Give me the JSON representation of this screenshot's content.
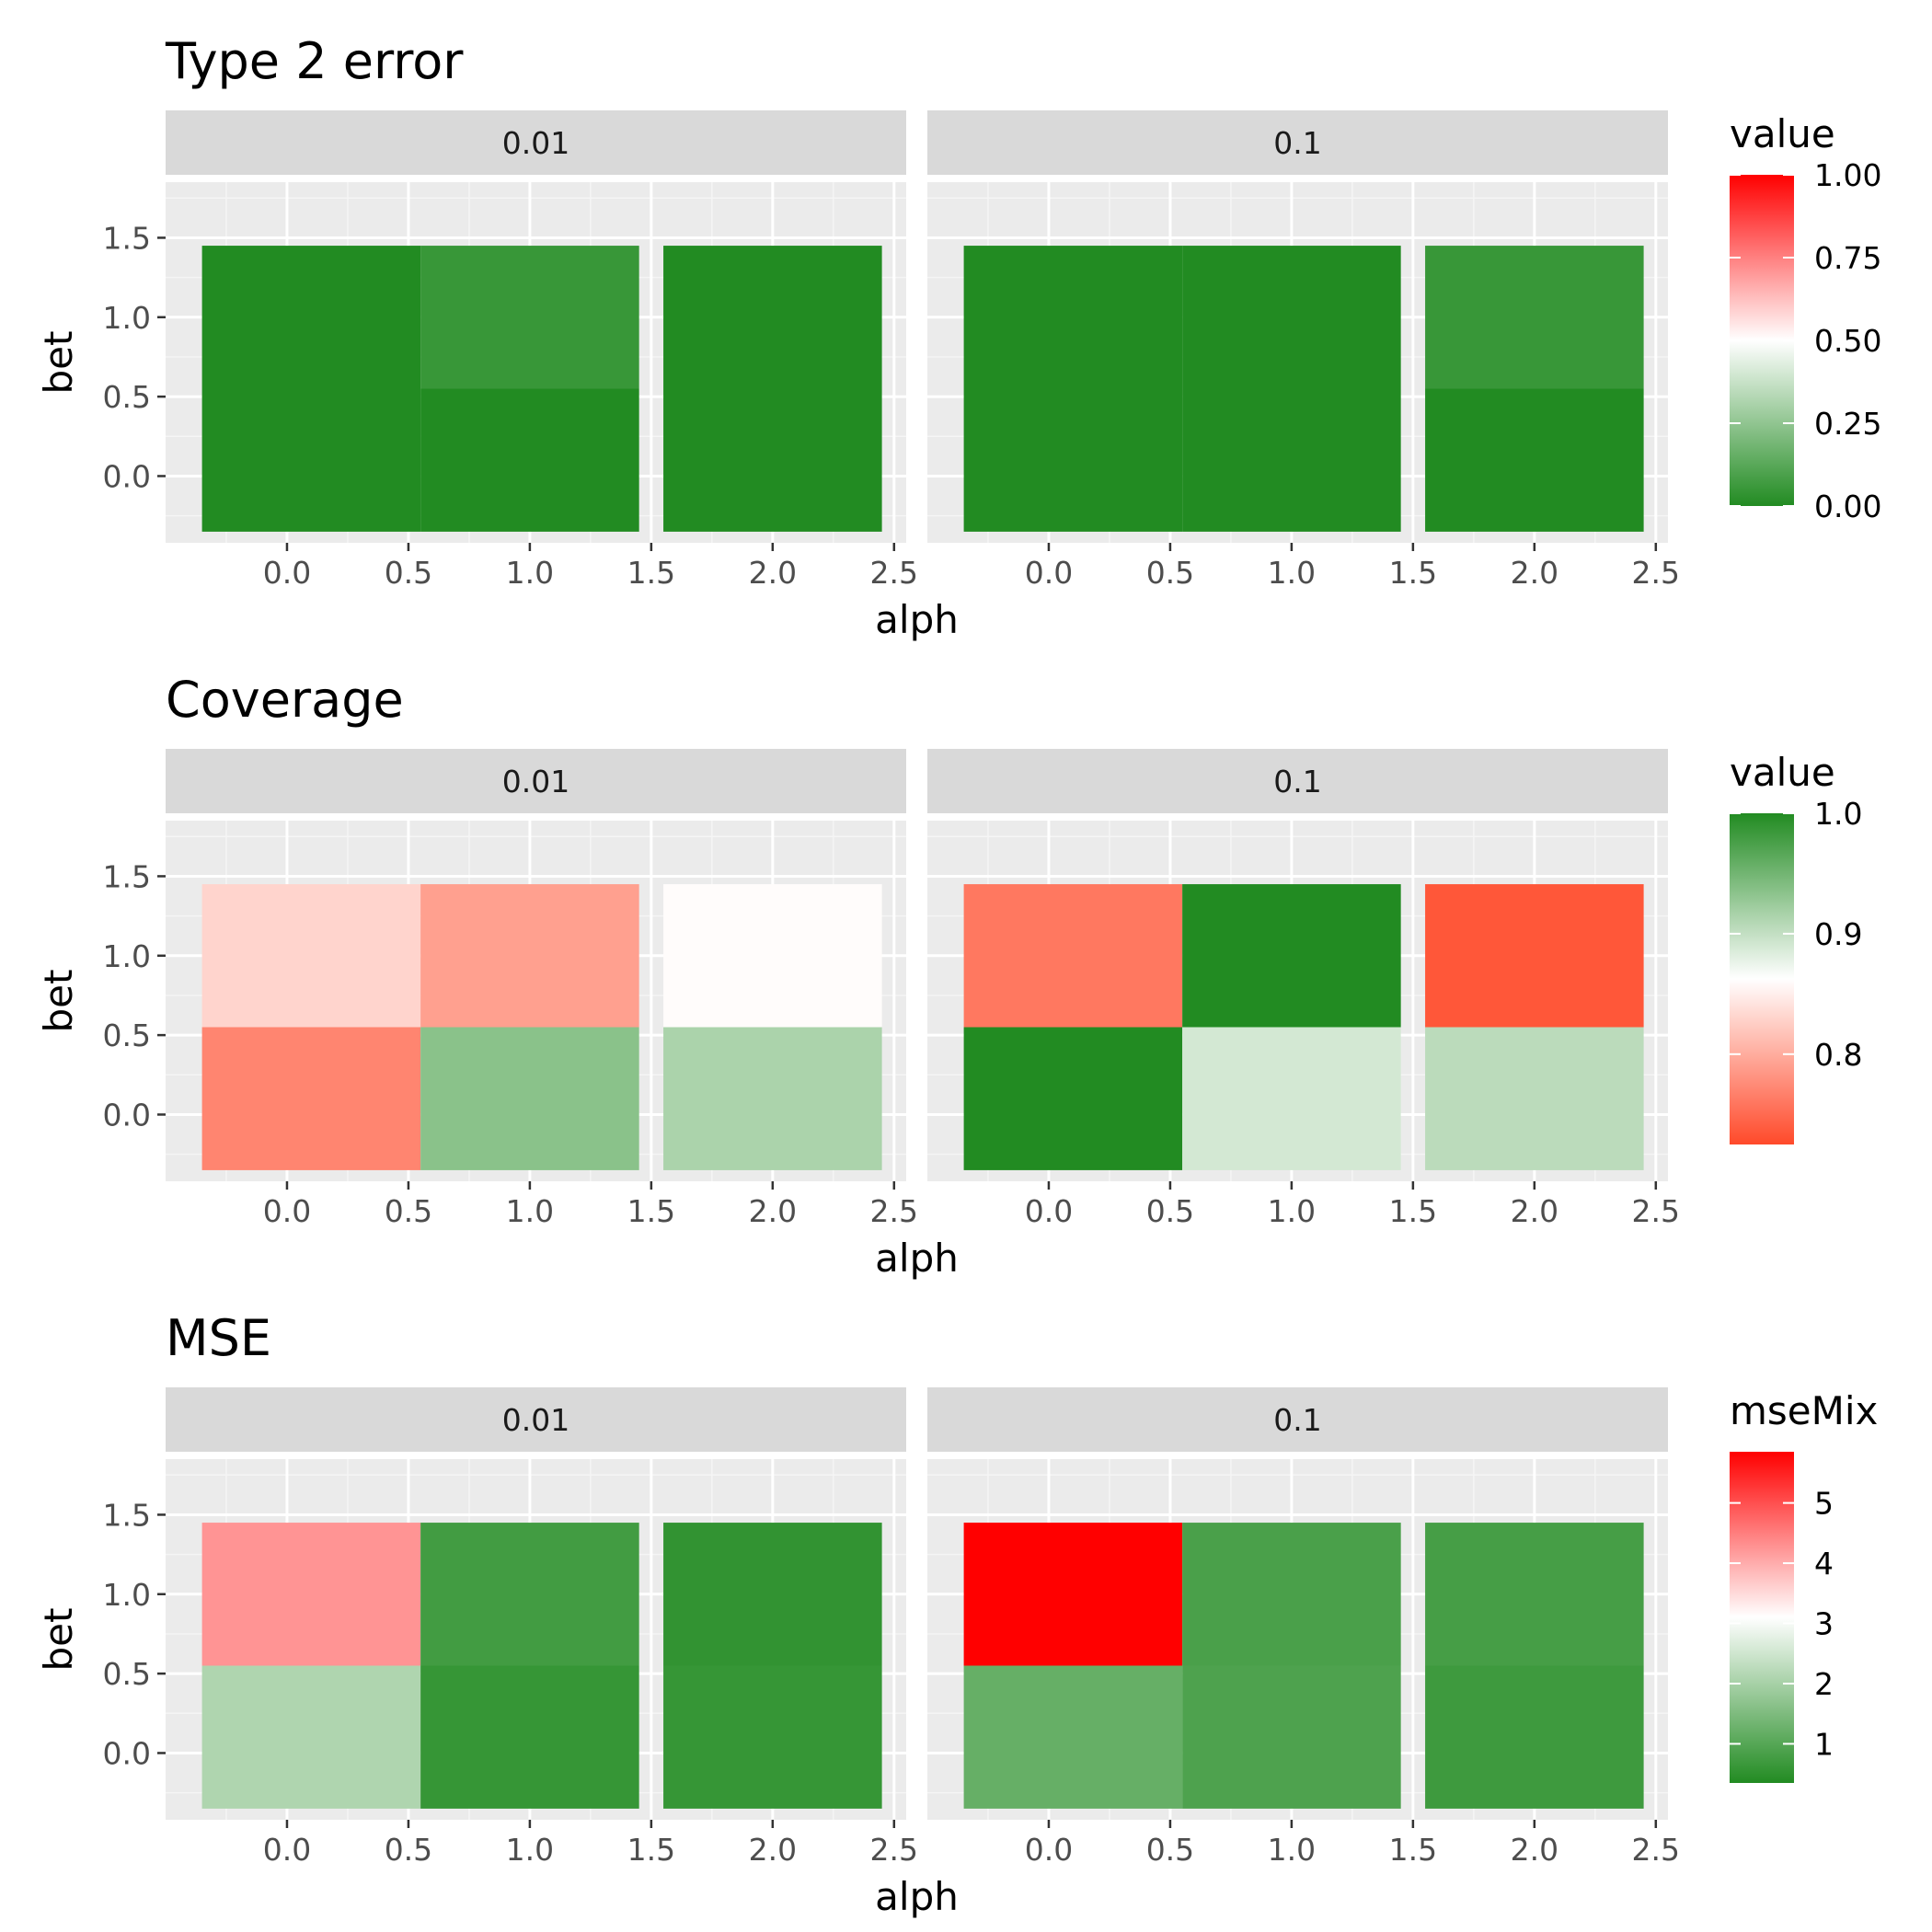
{
  "chart_data": [
    {
      "type": "heatmap",
      "title": "Type 2 error",
      "xlabel": "alph",
      "ylabel": "bet",
      "facets": [
        "0.01",
        "0.1"
      ],
      "x_ticks": [
        "0.0",
        "0.5",
        "1.0",
        "1.5",
        "2.0",
        "2.5"
      ],
      "y_ticks": [
        "0.0",
        "0.5",
        "1.0",
        "1.5"
      ],
      "xlim": [
        -0.5,
        2.55
      ],
      "ylim": [
        -0.42,
        1.85
      ],
      "legend": {
        "title": "value",
        "ticks": [
          "1.00",
          "0.75",
          "0.50",
          "0.25",
          "0.00"
        ],
        "tick_values": [
          1.0,
          0.75,
          0.5,
          0.25,
          0.0
        ],
        "range": [
          0.0,
          1.0
        ],
        "low_color": "#228B22",
        "mid_color": "#FFFFFF",
        "high_color": "#FF0000"
      },
      "cells": [
        [
          {
            "x": 0,
            "y": 0,
            "value": 0.0
          },
          {
            "x": 0,
            "y": 1,
            "value": 0.0
          },
          {
            "x": 1,
            "y": 0,
            "value": 0.0
          },
          {
            "x": 1,
            "y": 1,
            "value": 0.05
          },
          {
            "x": 2,
            "y": 0,
            "value": 0.0
          },
          {
            "x": 2,
            "y": 1,
            "value": 0.0
          }
        ],
        [
          {
            "x": 0,
            "y": 0,
            "value": 0.0
          },
          {
            "x": 0,
            "y": 1,
            "value": 0.0
          },
          {
            "x": 1,
            "y": 0,
            "value": 0.0
          },
          {
            "x": 1,
            "y": 1,
            "value": 0.0
          },
          {
            "x": 2,
            "y": 0,
            "value": 0.0
          },
          {
            "x": 2,
            "y": 1,
            "value": 0.05
          }
        ]
      ]
    },
    {
      "type": "heatmap",
      "title": "Coverage",
      "xlabel": "alph",
      "ylabel": "bet",
      "facets": [
        "0.01",
        "0.1"
      ],
      "x_ticks": [
        "0.0",
        "0.5",
        "1.0",
        "1.5",
        "2.0",
        "2.5"
      ],
      "y_ticks": [
        "0.0",
        "0.5",
        "1.0",
        "1.5"
      ],
      "xlim": [
        -0.5,
        2.55
      ],
      "ylim": [
        -0.42,
        1.85
      ],
      "legend": {
        "title": "value",
        "ticks": [
          "1.0",
          "0.9",
          "0.8"
        ],
        "tick_values": [
          1.0,
          0.9,
          0.8
        ],
        "range": [
          0.725,
          1.0
        ],
        "low_color": "#FF4A2A",
        "mid_color": "#FFFFFF",
        "high_color": "#228B22"
      },
      "cells": [
        [
          {
            "x": 0,
            "y": 0,
            "value": 0.77
          },
          {
            "x": 0,
            "y": 1,
            "value": 0.83
          },
          {
            "x": 1,
            "y": 0,
            "value": 0.935
          },
          {
            "x": 1,
            "y": 1,
            "value": 0.79
          },
          {
            "x": 2,
            "y": 0,
            "value": 0.915
          },
          {
            "x": 2,
            "y": 1,
            "value": 0.86
          }
        ],
        [
          {
            "x": 0,
            "y": 0,
            "value": 1.0
          },
          {
            "x": 0,
            "y": 1,
            "value": 0.76
          },
          {
            "x": 1,
            "y": 0,
            "value": 0.89
          },
          {
            "x": 1,
            "y": 1,
            "value": 1.0
          },
          {
            "x": 2,
            "y": 0,
            "value": 0.905
          },
          {
            "x": 2,
            "y": 1,
            "value": 0.735
          }
        ]
      ]
    },
    {
      "type": "heatmap",
      "title": "MSE",
      "xlabel": "alph",
      "ylabel": "bet",
      "facets": [
        "0.01",
        "0.1"
      ],
      "x_ticks": [
        "0.0",
        "0.5",
        "1.0",
        "1.5",
        "2.0",
        "2.5"
      ],
      "y_ticks": [
        "0.0",
        "0.5",
        "1.0",
        "1.5"
      ],
      "xlim": [
        -0.5,
        2.55
      ],
      "ylim": [
        -0.42,
        1.85
      ],
      "legend": {
        "title": "mseMix",
        "ticks": [
          "5",
          "4",
          "3",
          "2",
          "1"
        ],
        "tick_values": [
          5,
          4,
          3,
          2,
          1
        ],
        "range": [
          0.35,
          5.85
        ],
        "low_color": "#228B22",
        "mid_color": "#FFFFFF",
        "high_color": "#FF0000"
      },
      "cells": [
        [
          {
            "x": 0,
            "y": 0,
            "value": 2.1
          },
          {
            "x": 0,
            "y": 1,
            "value": 4.25
          },
          {
            "x": 1,
            "y": 0,
            "value": 0.6
          },
          {
            "x": 1,
            "y": 1,
            "value": 0.75
          },
          {
            "x": 2,
            "y": 0,
            "value": 0.6
          },
          {
            "x": 2,
            "y": 1,
            "value": 0.55
          }
        ],
        [
          {
            "x": 0,
            "y": 0,
            "value": 1.2
          },
          {
            "x": 0,
            "y": 1,
            "value": 5.85
          },
          {
            "x": 1,
            "y": 0,
            "value": 0.9
          },
          {
            "x": 1,
            "y": 1,
            "value": 0.85
          },
          {
            "x": 2,
            "y": 0,
            "value": 0.7
          },
          {
            "x": 2,
            "y": 1,
            "value": 0.8
          }
        ]
      ]
    }
  ]
}
